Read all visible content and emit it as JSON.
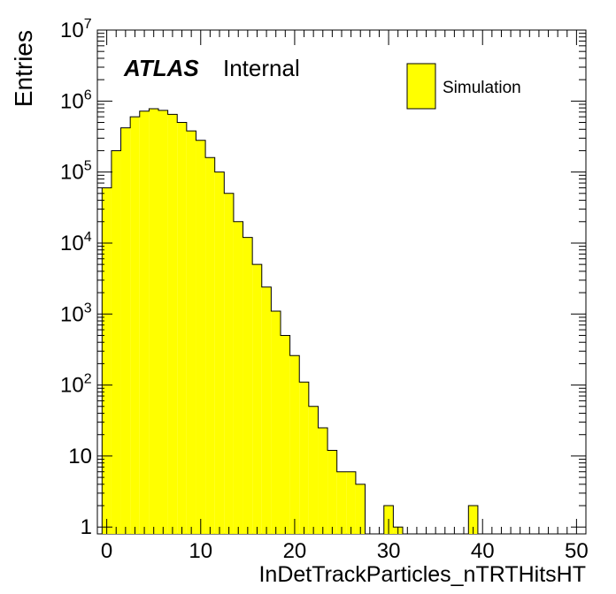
{
  "chart_data": {
    "type": "bar",
    "histogram": true,
    "xlabel": "InDetTrackParticles_nTRTHitsHT",
    "ylabel": "Entries",
    "x_range": [
      -1,
      51
    ],
    "x_ticks": [
      0,
      10,
      20,
      30,
      40,
      50
    ],
    "y_scale": "log",
    "y_range": [
      0.8,
      10000000
    ],
    "y_ticks": [
      {
        "value": 1,
        "label": "1",
        "sup": ""
      },
      {
        "value": 10,
        "label": "10",
        "sup": ""
      },
      {
        "value": 100,
        "label": "10",
        "sup": "2"
      },
      {
        "value": 1000,
        "label": "10",
        "sup": "3"
      },
      {
        "value": 10000,
        "label": "10",
        "sup": "4"
      },
      {
        "value": 100000,
        "label": "10",
        "sup": "5"
      },
      {
        "value": 1000000,
        "label": "10",
        "sup": "6"
      },
      {
        "value": 10000000,
        "label": "10",
        "sup": "7"
      }
    ],
    "atlas_label": "ATLAS",
    "atlas_suffix": "Internal",
    "legend_position": "top-right",
    "fill_color": "#ffff00",
    "line_color": "#000000",
    "series": [
      {
        "name": "Simulation",
        "bin_low_edges": [
          -0.5,
          0.5,
          1.5,
          2.5,
          3.5,
          4.5,
          5.5,
          6.5,
          7.5,
          8.5,
          9.5,
          10.5,
          11.5,
          12.5,
          13.5,
          14.5,
          15.5,
          16.5,
          17.5,
          18.5,
          19.5,
          20.5,
          21.5,
          22.5,
          23.5,
          24.5,
          25.5,
          26.5,
          27.5,
          28.5,
          29.5,
          30.5,
          31.5,
          32.5,
          33.5,
          34.5,
          35.5,
          36.5,
          37.5,
          38.5,
          39.5
        ],
        "bin_width": 1,
        "values": [
          60000,
          200000,
          420000,
          600000,
          720000,
          780000,
          740000,
          650000,
          500000,
          380000,
          280000,
          160000,
          100000,
          50000,
          20000,
          12000,
          5000,
          2400,
          1100,
          500,
          260,
          110,
          50,
          25,
          12,
          6,
          6,
          4,
          0,
          0,
          2,
          1,
          0,
          0,
          0,
          0,
          0,
          0,
          0,
          2,
          0
        ]
      }
    ]
  }
}
